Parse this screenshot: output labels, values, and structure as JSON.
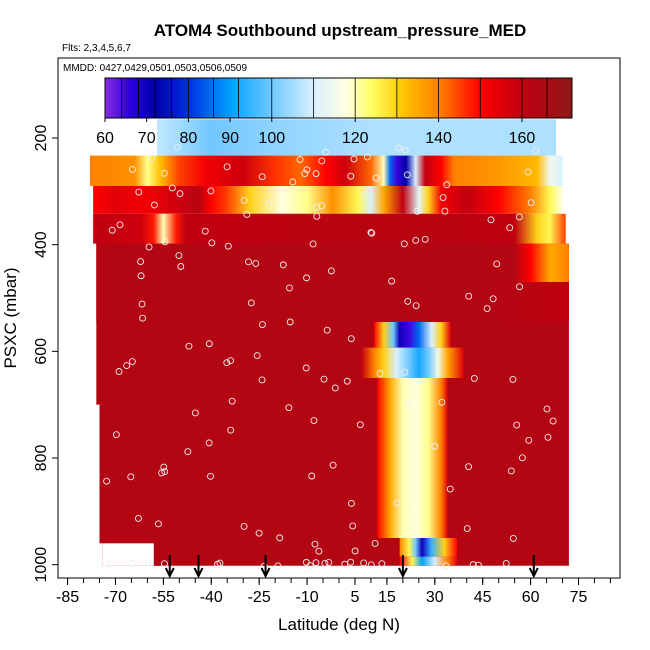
{
  "chart_data": {
    "type": "heatmap",
    "title": "ATOM4 Southbound upstream_pressure_MED",
    "flights_label": "Flts: 2,3,4,5,6,7",
    "dates_label": "MMDD: 0427,0429,0501,0503,0506,0509",
    "xlabel": "Latitude (deg N)",
    "ylabel": "PSXC (mbar)",
    "xlim": [
      -88,
      88
    ],
    "ylim": [
      1025,
      50
    ],
    "x_ticks": [
      -85,
      -70,
      -55,
      -40,
      -25,
      -10,
      5,
      15,
      30,
      45,
      60,
      75
    ],
    "x_minor_step": 5,
    "y_ticks": [
      200,
      400,
      600,
      800,
      1000
    ],
    "colorbar": {
      "range": [
        60,
        172
      ],
      "tick_values": [
        60,
        70,
        80,
        90,
        100,
        120,
        140,
        160
      ],
      "tick_labels": [
        "60",
        "70",
        "80",
        "90",
        "100",
        "120",
        "140",
        "160"
      ],
      "stops": [
        {
          "v": 60,
          "c": "#8a2be2"
        },
        {
          "v": 66,
          "c": "#2a00e0"
        },
        {
          "v": 72,
          "c": "#0000a8"
        },
        {
          "v": 80,
          "c": "#0030e0"
        },
        {
          "v": 90,
          "c": "#00a0ff"
        },
        {
          "v": 100,
          "c": "#70c8ff"
        },
        {
          "v": 110,
          "c": "#d8f0ff"
        },
        {
          "v": 118,
          "c": "#ffffe0"
        },
        {
          "v": 124,
          "c": "#ffff60"
        },
        {
          "v": 132,
          "c": "#ffc000"
        },
        {
          "v": 140,
          "c": "#ff8000"
        },
        {
          "v": 150,
          "c": "#ff0000"
        },
        {
          "v": 160,
          "c": "#c00010"
        },
        {
          "v": 172,
          "c": "#901818"
        }
      ]
    },
    "flight_arrows_lat": [
      -53,
      -44,
      -23,
      20,
      61
    ],
    "background_value": 163,
    "field": [
      {
        "p0": 165,
        "p1": 233,
        "lat0": -57,
        "lat1": 68,
        "segments": [
          [
            -57,
            108
          ],
          [
            -40,
            100
          ],
          [
            -20,
            103
          ],
          [
            10,
            106
          ],
          [
            40,
            106
          ],
          [
            68,
            106
          ]
        ]
      },
      {
        "p0": 233,
        "p1": 290,
        "lat0": -78,
        "lat1": 70,
        "segments": [
          [
            -78,
            140
          ],
          [
            -64,
            138
          ],
          [
            -60,
            122
          ],
          [
            -56,
            132
          ],
          [
            -50,
            145
          ],
          [
            -42,
            152
          ],
          [
            -30,
            158
          ],
          [
            -20,
            146
          ],
          [
            -12,
            142
          ],
          [
            -4,
            150
          ],
          [
            2,
            158
          ],
          [
            10,
            142
          ],
          [
            14,
            120
          ],
          [
            16,
            85
          ],
          [
            18,
            65
          ],
          [
            21,
            72
          ],
          [
            24,
            110
          ],
          [
            27,
            160
          ],
          [
            32,
            150
          ],
          [
            36,
            140
          ],
          [
            50,
            137
          ],
          [
            62,
            133
          ],
          [
            66,
            115
          ],
          [
            70,
            110
          ]
        ]
      },
      {
        "p0": 290,
        "p1": 342,
        "lat0": -77,
        "lat1": 70,
        "segments": [
          [
            -77,
            150
          ],
          [
            -70,
            155
          ],
          [
            -60,
            152
          ],
          [
            -50,
            158
          ],
          [
            -44,
            162
          ],
          [
            -40,
            150
          ],
          [
            -35,
            145
          ],
          [
            -28,
            130
          ],
          [
            -18,
            118
          ],
          [
            -10,
            122
          ],
          [
            -2,
            138
          ],
          [
            6,
            125
          ],
          [
            10,
            110
          ],
          [
            14,
            135
          ],
          [
            20,
            160
          ],
          [
            25,
            112
          ],
          [
            28,
            130
          ],
          [
            32,
            152
          ],
          [
            40,
            160
          ],
          [
            50,
            150
          ],
          [
            60,
            140
          ],
          [
            66,
            125
          ],
          [
            70,
            118
          ]
        ]
      },
      {
        "p0": 342,
        "p1": 398,
        "lat0": -77,
        "lat1": 71,
        "segments": [
          [
            -77,
            160
          ],
          [
            -62,
            158
          ],
          [
            -58,
            148
          ],
          [
            -55,
            120
          ],
          [
            -51,
            148
          ],
          [
            -48,
            160
          ],
          [
            -38,
            160
          ],
          [
            0,
            162
          ],
          [
            30,
            162
          ],
          [
            55,
            160
          ],
          [
            62,
            130
          ],
          [
            66,
            125
          ],
          [
            71,
            145
          ]
        ]
      },
      {
        "p0": 398,
        "p1": 470,
        "lat0": -76,
        "lat1": 72,
        "segments": [
          [
            -76,
            163
          ],
          [
            55,
            163
          ],
          [
            60,
            150
          ],
          [
            66,
            135
          ],
          [
            72,
            140
          ]
        ]
      },
      {
        "p0": 470,
        "p1": 545,
        "lat0": -76,
        "lat1": 72,
        "segments": [
          [
            -76,
            163
          ],
          [
            50,
            163
          ],
          [
            72,
            160
          ]
        ]
      },
      {
        "p0": 545,
        "p1": 593,
        "lat0": 11,
        "lat1": 35,
        "segments": [
          [
            11,
            150
          ],
          [
            14,
            130
          ],
          [
            17,
            100
          ],
          [
            19,
            70
          ],
          [
            22,
            65
          ],
          [
            25,
            85
          ],
          [
            29,
            110
          ],
          [
            32,
            130
          ],
          [
            35,
            155
          ]
        ]
      },
      {
        "p0": 593,
        "p1": 650,
        "lat0": 7,
        "lat1": 39,
        "segments": [
          [
            7,
            160
          ],
          [
            11,
            140
          ],
          [
            14,
            130
          ],
          [
            18,
            110
          ],
          [
            22,
            100
          ],
          [
            25,
            92
          ],
          [
            28,
            100
          ],
          [
            31,
            115
          ],
          [
            34,
            135
          ],
          [
            39,
            155
          ]
        ]
      },
      {
        "p0": 650,
        "p1": 950,
        "lat0": 12,
        "lat1": 34,
        "segments": [
          [
            12,
            150
          ],
          [
            16,
            135
          ],
          [
            20,
            120
          ],
          [
            24,
            118
          ],
          [
            28,
            122
          ],
          [
            32,
            140
          ],
          [
            34,
            155
          ]
        ]
      },
      {
        "p0": 950,
        "p1": 985,
        "lat0": 19,
        "lat1": 37,
        "segments": [
          [
            19,
            140
          ],
          [
            22,
            125
          ],
          [
            24,
            100
          ],
          [
            26,
            70
          ],
          [
            29,
            95
          ],
          [
            33,
            130
          ],
          [
            37,
            150
          ]
        ]
      },
      {
        "p0": 985,
        "p1": 1002,
        "lat0": 19,
        "lat1": 37,
        "segments": [
          [
            19,
            150
          ],
          [
            23,
            125
          ],
          [
            26,
            90
          ],
          [
            30,
            110
          ],
          [
            34,
            140
          ],
          [
            37,
            155
          ]
        ]
      }
    ]
  }
}
